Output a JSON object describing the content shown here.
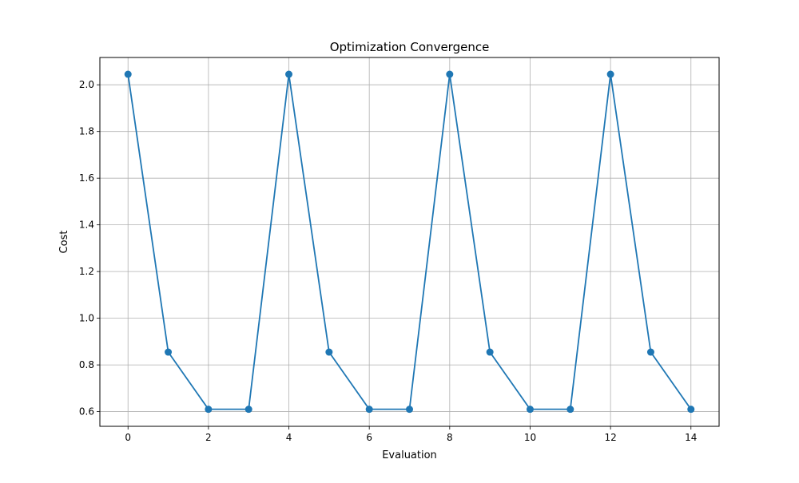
{
  "chart_data": {
    "type": "line",
    "title": "Optimization Convergence",
    "xlabel": "Evaluation",
    "ylabel": "Cost",
    "x": [
      0,
      1,
      2,
      3,
      4,
      5,
      6,
      7,
      8,
      9,
      10,
      11,
      12,
      13,
      14
    ],
    "series": [
      {
        "values": [
          2.045,
          0.855,
          0.61,
          0.61,
          2.045,
          0.855,
          0.61,
          0.61,
          2.045,
          0.855,
          0.61,
          0.61,
          2.045,
          0.855,
          0.61
        ],
        "color": "#1f77b4",
        "marker": "circle"
      }
    ],
    "xlim": [
      -0.7,
      14.7
    ],
    "ylim": [
      0.537,
      2.117
    ],
    "xticks": [
      0,
      2,
      4,
      6,
      8,
      10,
      12,
      14
    ],
    "yticks": [
      0.6,
      0.8,
      1.0,
      1.2,
      1.4,
      1.6,
      1.8,
      2.0
    ],
    "xtick_labels": [
      "0",
      "2",
      "4",
      "6",
      "8",
      "10",
      "12",
      "14"
    ],
    "ytick_labels": [
      "0.6",
      "0.8",
      "1.0",
      "1.2",
      "1.4",
      "1.6",
      "1.8",
      "2.0"
    ],
    "grid": true,
    "grid_color": "#b0b0b0"
  }
}
